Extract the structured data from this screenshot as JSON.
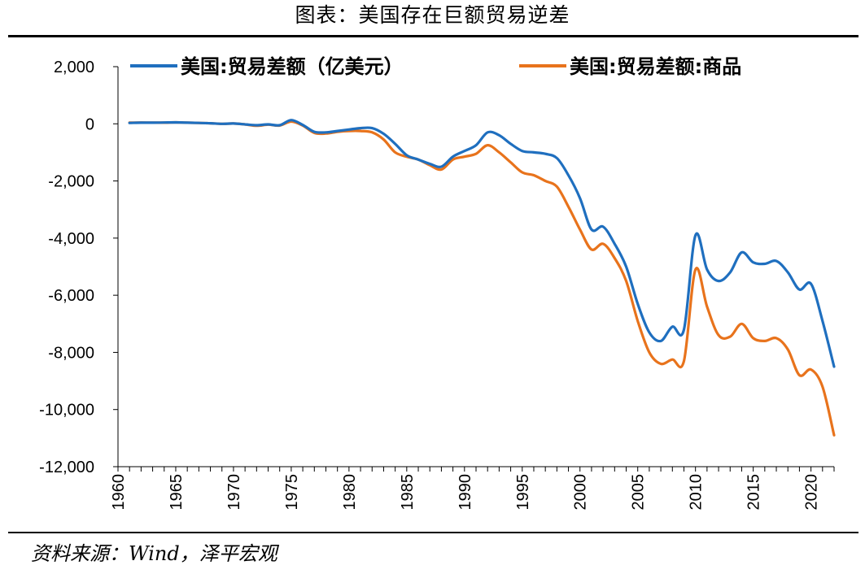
{
  "header": {
    "title": "图表：美国存在巨额贸易逆差"
  },
  "footer": {
    "source": "资料来源：Wind，泽平宏观"
  },
  "colors": {
    "series_total": "#1f6fbf",
    "series_goods": "#e8731c",
    "axis": "#000000"
  },
  "chart_data": {
    "type": "line",
    "title": "图表：美国存在巨额贸易逆差",
    "xlabel": "",
    "ylabel": "",
    "xlim": [
      1960,
      2022
    ],
    "ylim": [
      -12000,
      2000
    ],
    "grid": false,
    "legend_position": "top",
    "x_tick_labels": [
      "1960",
      "1965",
      "1970",
      "1975",
      "1980",
      "1985",
      "1990",
      "1995",
      "2000",
      "2005",
      "2010",
      "2015",
      "2020"
    ],
    "y_tick_labels": [
      "2,000",
      "0",
      "-2,000",
      "-4,000",
      "-6,000",
      "-8,000",
      "-10,000",
      "-12,000"
    ],
    "x": [
      1961,
      1962,
      1963,
      1964,
      1965,
      1966,
      1967,
      1968,
      1969,
      1970,
      1971,
      1972,
      1973,
      1974,
      1975,
      1976,
      1977,
      1978,
      1979,
      1980,
      1981,
      1982,
      1983,
      1984,
      1985,
      1986,
      1987,
      1988,
      1989,
      1990,
      1991,
      1992,
      1993,
      1994,
      1995,
      1996,
      1997,
      1998,
      1999,
      2000,
      2001,
      2002,
      2003,
      2004,
      2005,
      2006,
      2007,
      2008,
      2009,
      2010,
      2011,
      2012,
      2013,
      2014,
      2015,
      2016,
      2017,
      2018,
      2019,
      2020,
      2021,
      2022
    ],
    "series": [
      {
        "name": "美国:贸易差额（亿美元）",
        "values": [
          30,
          40,
          40,
          45,
          50,
          40,
          30,
          20,
          0,
          10,
          -20,
          -50,
          -20,
          -50,
          130,
          -40,
          -280,
          -300,
          -250,
          -200,
          -150,
          -150,
          -350,
          -700,
          -1100,
          -1250,
          -1400,
          -1500,
          -1150,
          -950,
          -750,
          -300,
          -400,
          -700,
          -950,
          -1000,
          -1050,
          -1200,
          -1800,
          -2600,
          -3700,
          -3600,
          -4200,
          -5000,
          -6300,
          -7300,
          -7600,
          -7100,
          -7200,
          -3900,
          -5100,
          -5500,
          -5200,
          -4500,
          -4850,
          -4900,
          -4800,
          -5200,
          -5800,
          -5600,
          -6900,
          -8500
        ]
      },
      {
        "name": "美国:贸易差额:商品",
        "values": [
          40,
          45,
          40,
          40,
          50,
          40,
          30,
          20,
          0,
          10,
          -20,
          -70,
          -30,
          -60,
          80,
          -60,
          -320,
          -340,
          -280,
          -250,
          -250,
          -300,
          -550,
          -1000,
          -1150,
          -1250,
          -1450,
          -1600,
          -1250,
          -1150,
          -1050,
          -750,
          -1000,
          -1350,
          -1700,
          -1800,
          -2000,
          -2200,
          -2900,
          -3700,
          -4400,
          -4200,
          -4700,
          -5500,
          -6900,
          -8000,
          -8400,
          -8250,
          -8300,
          -5100,
          -6400,
          -7400,
          -7450,
          -7000,
          -7500,
          -7600,
          -7500,
          -7900,
          -8800,
          -8600,
          -9200,
          -10900
        ]
      }
    ]
  }
}
